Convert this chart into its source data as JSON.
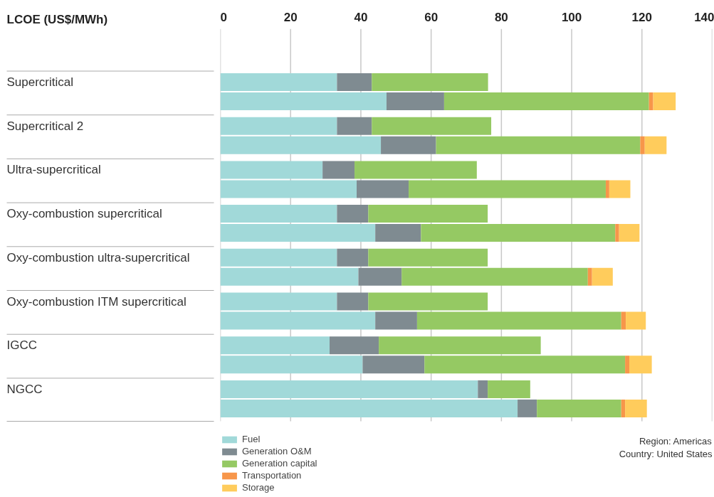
{
  "chart_data": {
    "type": "bar",
    "orientation": "horizontal",
    "stacked": true,
    "xlabel": "LCOE (US$/MWh)",
    "categories": [
      "Supercritical",
      null,
      "Supercritical 2",
      null,
      "Ultra-supercritical",
      null,
      "Oxy-combustion supercritical",
      null,
      "Oxy-combustion ultra-supercritical",
      null,
      "Oxy-combustion ITM supercritical",
      null,
      "IGCC",
      null,
      "NGCC",
      null
    ],
    "series": [
      {
        "name": "Fuel",
        "color": "#a1d9d9",
        "values": [
          33.2,
          47.3,
          33.2,
          45.7,
          29.1,
          38.8,
          33.2,
          44.1,
          33.2,
          39.3,
          33.2,
          44.1,
          31.1,
          40.5,
          73.3,
          84.6
        ]
      },
      {
        "name": "Generation O&M",
        "color": "#7f8b91",
        "values": [
          9.9,
          16.4,
          9.9,
          15.7,
          9.1,
          14.8,
          8.9,
          13.0,
          8.9,
          12.3,
          8.9,
          11.9,
          14.0,
          17.6,
          2.8,
          5.5
        ]
      },
      {
        "name": "Generation capital",
        "color": "#95c963",
        "values": [
          33.1,
          58.3,
          34.0,
          58.1,
          34.8,
          56.1,
          34.0,
          55.3,
          34.0,
          53.0,
          34.0,
          58.1,
          46.1,
          57.1,
          12.1,
          24.0
        ]
      },
      {
        "name": "Transportation",
        "color": "#f7964a",
        "values": [
          null,
          1.2,
          null,
          1.3,
          null,
          1.0,
          null,
          1.1,
          null,
          1.2,
          null,
          1.3,
          null,
          1.2,
          null,
          1.1
        ]
      },
      {
        "name": "Storage",
        "color": "#ffcc5c",
        "values": [
          null,
          6.4,
          null,
          6.2,
          null,
          6.0,
          null,
          5.8,
          null,
          5.9,
          null,
          5.7,
          null,
          6.4,
          null,
          6.2
        ]
      }
    ],
    "xlim": [
      0,
      140
    ],
    "xticks": [
      0,
      20,
      40,
      60,
      80,
      100,
      120,
      140
    ],
    "grid": "x",
    "legend": "bottom left",
    "tick_labels": "x",
    "annotations": [
      "Region: Americas",
      "Country: United States"
    ]
  }
}
